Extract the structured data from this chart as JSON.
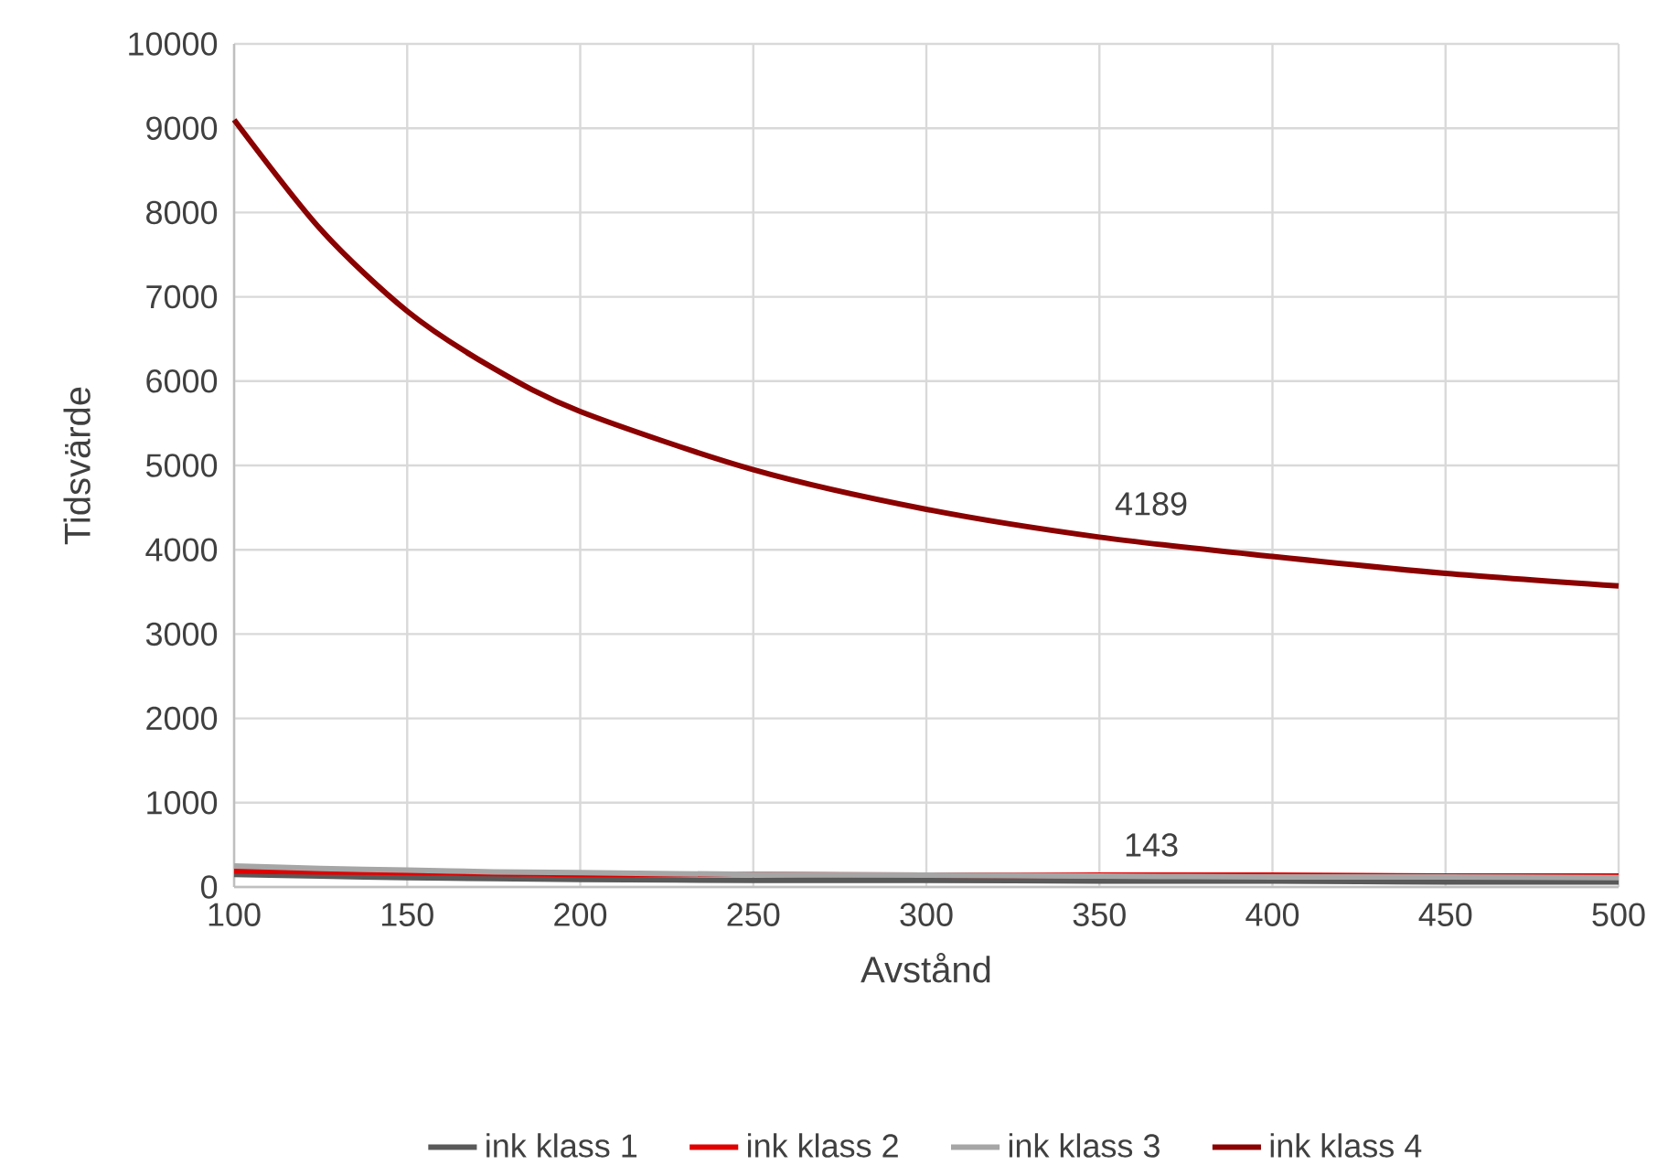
{
  "chart_data": {
    "type": "line",
    "xlabel": "Avstånd",
    "ylabel": "Tidsvärde",
    "x": [
      100,
      125,
      150,
      175,
      200,
      250,
      300,
      350,
      400,
      450,
      500
    ],
    "series": [
      {
        "name": "ink klass 1",
        "color": "#595959",
        "values": [
          150,
          130,
          110,
          100,
          90,
          80,
          80,
          70,
          70,
          60,
          60
        ]
      },
      {
        "name": "ink klass 2",
        "color": "#e00000",
        "values": [
          190,
          180,
          170,
          160,
          150,
          150,
          140,
          140,
          140,
          130,
          130
        ]
      },
      {
        "name": "ink klass 3",
        "color": "#a6a6a6",
        "values": [
          250,
          220,
          200,
          180,
          170,
          150,
          140,
          130,
          120,
          120,
          110
        ]
      },
      {
        "name": "ink klass 4",
        "color": "#8b0000",
        "values": [
          9100,
          7800,
          6830,
          6150,
          5640,
          4950,
          4480,
          4150,
          3920,
          3720,
          3570
        ]
      }
    ],
    "annotations": [
      {
        "text": "4189",
        "x": 365,
        "y": 4189
      },
      {
        "text": "143",
        "x": 365,
        "y": 143
      }
    ],
    "xlim": [
      100,
      500
    ],
    "xticks": [
      100,
      150,
      200,
      250,
      300,
      350,
      400,
      450,
      500
    ],
    "ylim": [
      0,
      10000
    ],
    "yticks": [
      0,
      1000,
      2000,
      3000,
      4000,
      5000,
      6000,
      7000,
      8000,
      9000,
      10000
    ],
    "grid": true,
    "legend": "bottom",
    "marker": "none",
    "line_style": "solid"
  }
}
